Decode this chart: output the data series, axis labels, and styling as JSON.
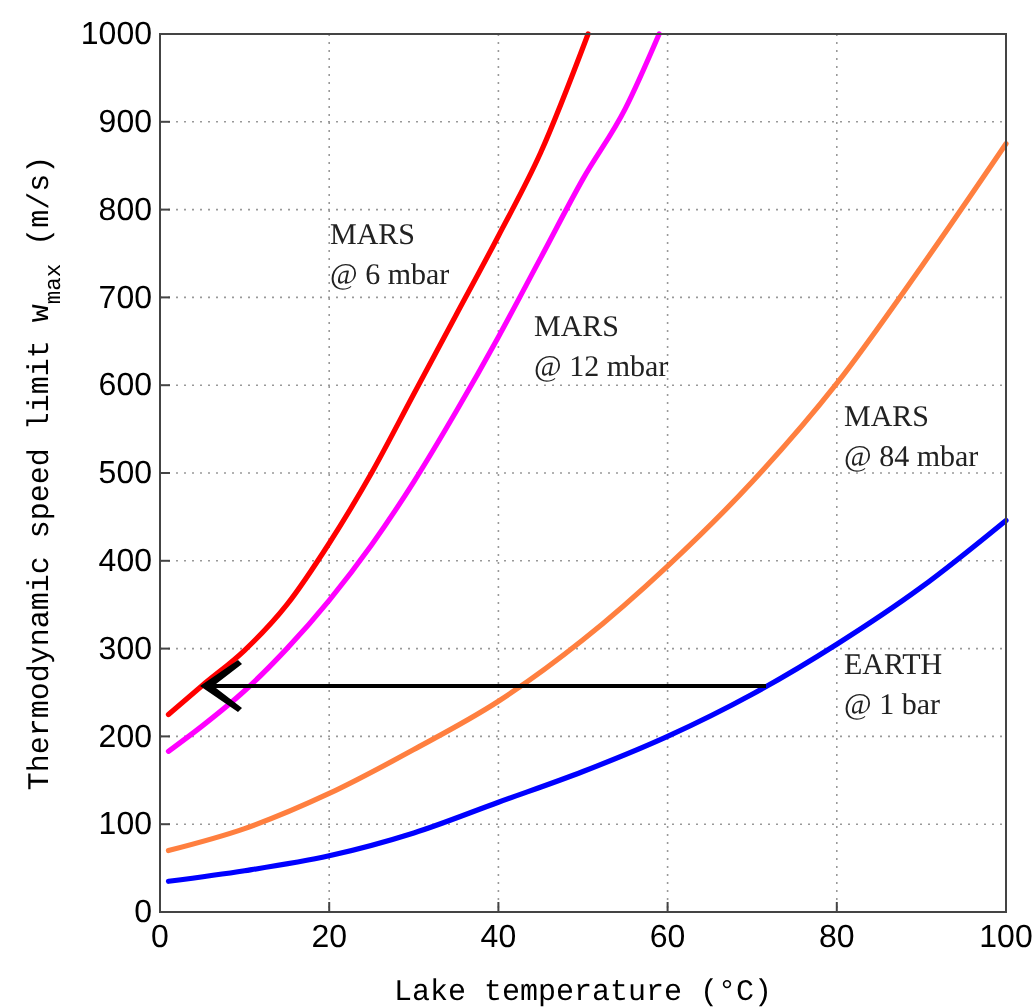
{
  "chart_data": {
    "type": "line",
    "xlabel": "Lake temperature (°C)",
    "ylabel": "Thermodynamic speed limit w$_{max}$ (m/s)",
    "xlim": [
      0,
      100
    ],
    "xticks": [
      0,
      20,
      40,
      60,
      80,
      100
    ],
    "ylim": [
      0,
      1000
    ],
    "yticks": [
      0,
      100,
      200,
      300,
      400,
      500,
      600,
      700,
      800,
      900,
      1000
    ],
    "grid": true,
    "legend": false,
    "marker": "none",
    "line_style": "solid",
    "series": [
      {
        "name": "MARS\n@ 6 mbar",
        "color": "#ff0000",
        "x": [
          1,
          5,
          10,
          15,
          20,
          25,
          30,
          35,
          40,
          45,
          50.6
        ],
        "values": [
          225,
          258,
          298,
          350,
          420,
          500,
          590,
          680,
          770,
          865,
          1000
        ]
      },
      {
        "name": "MARS\n@ 12 mbar",
        "color": "#ff00ff",
        "x": [
          1,
          5,
          10,
          15,
          20,
          25,
          30,
          35,
          40,
          45,
          50,
          55,
          59
        ],
        "values": [
          183,
          212,
          252,
          300,
          355,
          418,
          490,
          570,
          655,
          745,
          835,
          915,
          1000
        ]
      },
      {
        "name": "MARS\n@ 84 mbar",
        "color": "#ff7f3f",
        "x": [
          1,
          10,
          20,
          30,
          40,
          50,
          60,
          70,
          80,
          90,
          100
        ],
        "values": [
          70,
          95,
          135,
          185,
          240,
          310,
          394,
          490,
          602,
          735,
          875
        ]
      },
      {
        "name": "EARTH\n@ 1 bar",
        "color": "#0000ff",
        "x": [
          1,
          10,
          20,
          30,
          40,
          50,
          60,
          70,
          80,
          90,
          100
        ],
        "values": [
          35,
          47,
          64,
          90,
          125,
          160,
          200,
          248,
          305,
          370,
          446
        ]
      }
    ]
  }
}
